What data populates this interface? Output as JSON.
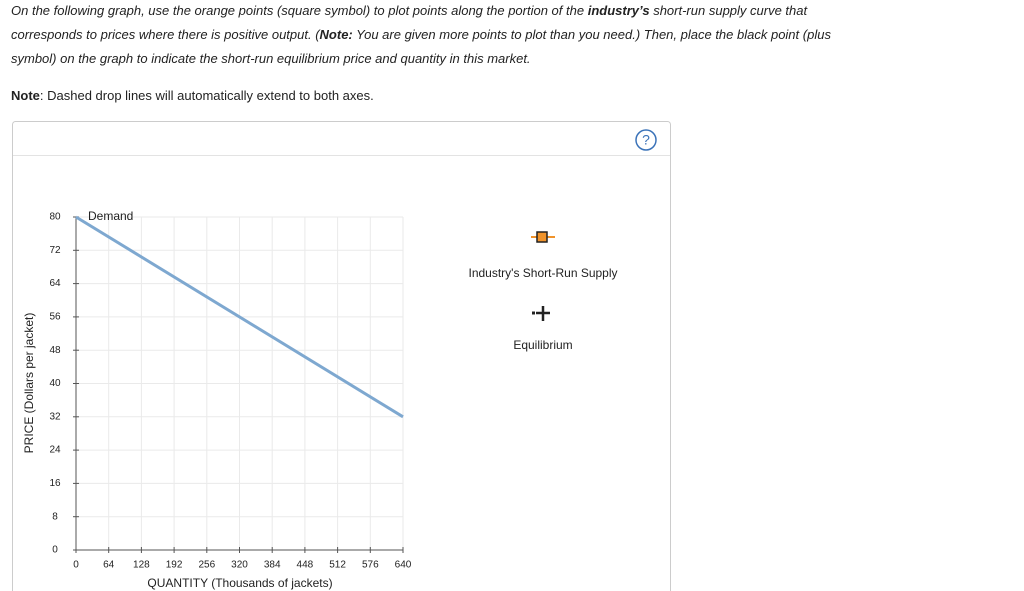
{
  "instructions": [
    [
      "On the following graph, use the orange points (square symbol) to plot points along the portion of the ",
      "industry’s",
      " short-run supply curve that"
    ],
    [
      "corresponds to prices where there is positive output. (",
      "Note:",
      " You are given more points to plot than you need.) Then, place the black point (plus"
    ],
    [
      "symbol) on the graph to indicate the short-run equilibrium price and quantity in this market."
    ]
  ],
  "note": [
    "Note",
    ": Dashed drop lines will automatically extend to both axes."
  ],
  "help_icon": "?",
  "chart_data": {
    "type": "line",
    "x_label": "QUANTITY (Thousands of jackets)",
    "y_label": "PRICE (Dollars per jacket)",
    "x": [
      0,
      640
    ],
    "series": [
      {
        "name": "Demand",
        "color": "#7ea8d0",
        "values": [
          80,
          32
        ]
      }
    ],
    "xlim": [
      0,
      640
    ],
    "xticks": [
      0,
      64,
      128,
      192,
      256,
      320,
      384,
      448,
      512,
      576,
      640
    ],
    "ylim": [
      0,
      80
    ],
    "yticks": [
      0,
      8,
      16,
      24,
      32,
      40,
      48,
      56,
      64,
      72,
      80
    ],
    "grid": true,
    "legend_items": [
      "Industry's Short-Run Supply",
      "Equilibrium"
    ]
  }
}
